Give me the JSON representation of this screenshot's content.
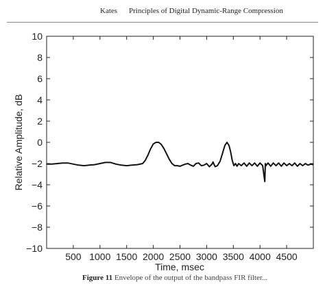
{
  "header": {
    "author": "Kates",
    "title": "Principles of Digital Dynamic-Range Compression"
  },
  "caption": {
    "label": "Figure 11",
    "text": "Envelope of the output of the bandpass FIR filter..."
  },
  "chart_data": {
    "type": "line",
    "title": "",
    "xlabel": "Time, msec",
    "ylabel": "Relative Amplitude, dB",
    "xlim": [
      0,
      5000
    ],
    "ylim": [
      -10,
      10
    ],
    "xticks": [
      500,
      1000,
      1500,
      2000,
      2500,
      3000,
      3500,
      4000,
      4500
    ],
    "yticks": [
      10,
      8,
      6,
      4,
      2,
      0,
      -2,
      -4,
      -6,
      -8,
      -10
    ],
    "grid": false,
    "series": [
      {
        "x": [
          0,
          100,
          200,
          300,
          400,
          500,
          600,
          700,
          800,
          900,
          1000,
          1100,
          1200,
          1300,
          1400,
          1500,
          1600,
          1700,
          1800,
          1850,
          1900,
          1950,
          2000,
          2050,
          2100,
          2150,
          2200,
          2250,
          2300,
          2350,
          2400,
          2450,
          2500,
          2550,
          2600,
          2650,
          2700,
          2750,
          2800,
          2850,
          2900,
          2950,
          3000,
          3050,
          3100,
          3120,
          3140,
          3160,
          3200,
          3250,
          3300,
          3340,
          3380,
          3420,
          3450,
          3480,
          3510,
          3540,
          3570,
          3600,
          3650,
          3700,
          3750,
          3800,
          3850,
          3900,
          3950,
          4000,
          4050,
          4090,
          4100,
          4110,
          4150,
          4200,
          4250,
          4300,
          4350,
          4400,
          4450,
          4500,
          4550,
          4600,
          4650,
          4700,
          4750,
          4800,
          4850,
          4900,
          4950,
          5000
        ],
        "y": [
          -2.05,
          -2.05,
          -2.0,
          -1.95,
          -1.95,
          -2.05,
          -2.15,
          -2.2,
          -2.15,
          -2.1,
          -2.0,
          -1.9,
          -1.9,
          -2.05,
          -2.15,
          -2.2,
          -2.15,
          -2.1,
          -2.0,
          -1.7,
          -1.2,
          -0.6,
          -0.15,
          0.0,
          0.0,
          -0.2,
          -0.6,
          -1.1,
          -1.6,
          -2.0,
          -2.2,
          -2.2,
          -2.25,
          -2.15,
          -2.05,
          -2.0,
          -2.15,
          -2.25,
          -2.0,
          -1.95,
          -2.2,
          -2.15,
          -2.0,
          -2.3,
          -2.05,
          -1.85,
          -2.1,
          -2.3,
          -2.2,
          -1.8,
          -1.0,
          -0.3,
          0.0,
          -0.3,
          -0.9,
          -1.7,
          -2.2,
          -2.0,
          -2.25,
          -2.0,
          -2.2,
          -1.95,
          -2.25,
          -1.95,
          -2.2,
          -1.95,
          -2.25,
          -1.95,
          -2.2,
          -3.7,
          -2.0,
          -2.2,
          -1.95,
          -2.25,
          -1.95,
          -2.2,
          -1.95,
          -2.25,
          -1.95,
          -2.2,
          -2.0,
          -2.2,
          -1.95,
          -2.25,
          -2.0,
          -2.2,
          -2.0,
          -2.15,
          -2.05,
          -2.1
        ]
      }
    ]
  }
}
